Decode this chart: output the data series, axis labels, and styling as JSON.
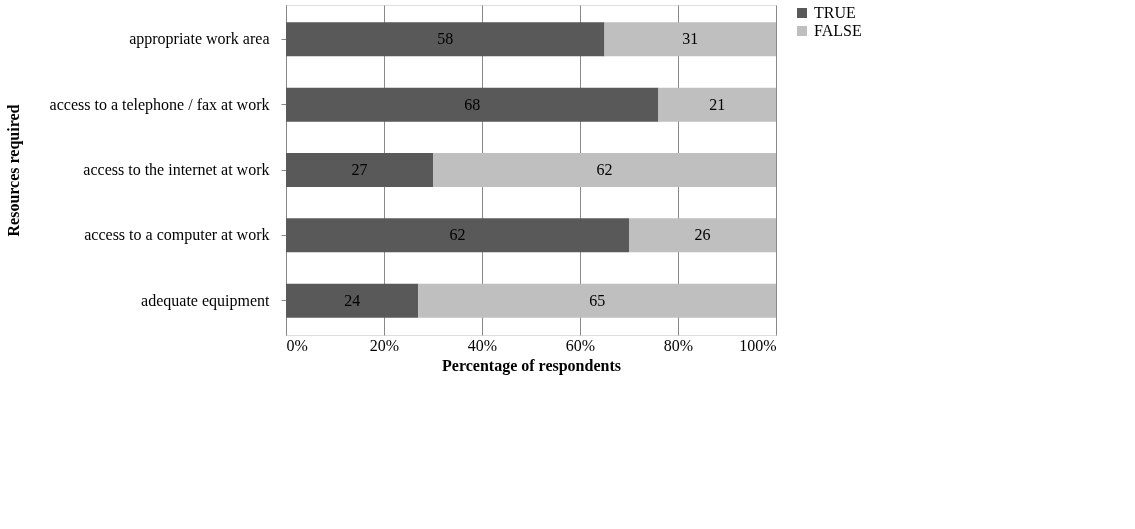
{
  "chart_data": {
    "type": "bar",
    "orientation": "horizontal",
    "stacked": true,
    "xlabel": "Percentage of respondents",
    "ylabel": "Resources required",
    "categories": [
      "appropriate work area",
      "access to a telephone / fax at work",
      "access to the internet at work",
      "access to a computer at work",
      "adequate equipment"
    ],
    "series": [
      {
        "name": "TRUE",
        "color": "#595959",
        "values": [
          65,
          76,
          30,
          70,
          27
        ]
      },
      {
        "name": "FALSE",
        "color": "#bfbfbf",
        "values": [
          35,
          24,
          70,
          30,
          73
        ]
      }
    ],
    "annotations": [
      "58",
      "31",
      "68",
      "21",
      "27",
      "62",
      "62",
      "26",
      "24",
      "65"
    ],
    "xlim": [
      0,
      100
    ],
    "xticks": [
      {
        "value": 0,
        "label": "0%"
      },
      {
        "value": 20,
        "label": "20%"
      },
      {
        "value": 40,
        "label": "40%"
      },
      {
        "value": 60,
        "label": "60%"
      },
      {
        "value": 80,
        "label": "80%"
      },
      {
        "value": 100,
        "label": "100%"
      }
    ],
    "grid": "x",
    "legend": "right"
  }
}
